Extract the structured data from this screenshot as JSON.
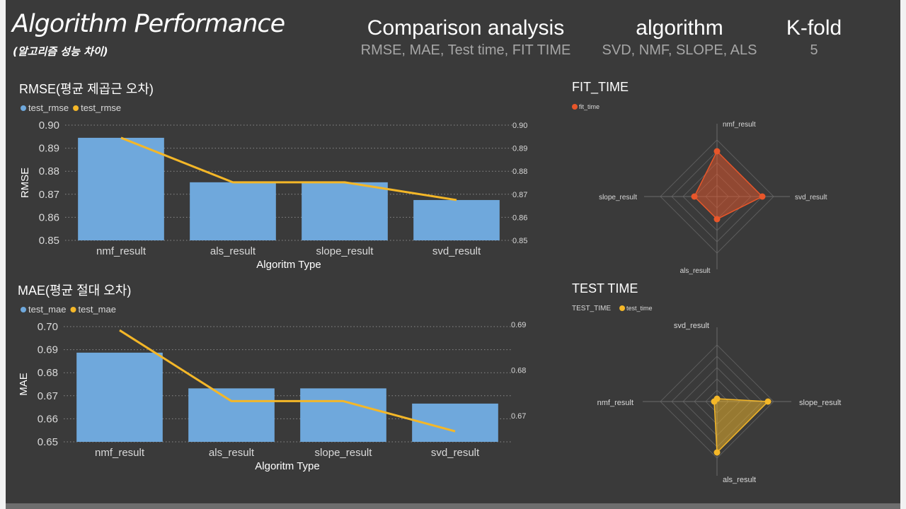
{
  "header": {
    "title": "Algorithm Performance",
    "subtitle": "(알고리즘 성능 차이)",
    "cards": [
      {
        "label": "Comparison analysis",
        "value": "RMSE, MAE, Test time, FIT TIME"
      },
      {
        "label": "algorithm",
        "value": "SVD, NMF, SLOPE, ALS"
      },
      {
        "label": "K-fold",
        "value": "5"
      }
    ]
  },
  "colors": {
    "background": "#3a3a3a",
    "bar": "#6fa8dc",
    "line": "#f4b728",
    "fit_time": "#e8562a",
    "test_time": "#f4b728",
    "text": "#ffffff",
    "muted": "#d9d9d9"
  },
  "chart_data": [
    {
      "type": "bar",
      "title": "RMSE(평균 제곱근 오차)",
      "xlabel": "Algoritm Type",
      "ylabel": "RMSE",
      "categories": [
        "nmf_result",
        "als_result",
        "slope_result",
        "svd_result"
      ],
      "series": [
        {
          "name": "test_rmse",
          "type": "bar",
          "axis": "left",
          "values": [
            0.8945,
            0.8752,
            0.8752,
            0.8675
          ]
        },
        {
          "name": "test_rmse",
          "type": "line",
          "axis": "right",
          "values": [
            0.8945,
            0.8752,
            0.8752,
            0.8675
          ]
        }
      ],
      "ylim": [
        0.85,
        0.9
      ],
      "yticks": [
        "0.85",
        "0.86",
        "0.87",
        "0.88",
        "0.89",
        "0.90"
      ],
      "y2lim": [
        0.85,
        0.9
      ],
      "y2ticks": [
        "0.85",
        "0.86",
        "0.87",
        "0.88",
        "0.89",
        "0.90"
      ],
      "grid": true,
      "legend": "top-left"
    },
    {
      "type": "bar",
      "title": "MAE(평균 절대 오차)",
      "xlabel": "Algoritm Type",
      "ylabel": "MAE",
      "categories": [
        "nmf_result",
        "als_result",
        "slope_result",
        "svd_result"
      ],
      "series": [
        {
          "name": "test_mae",
          "type": "bar",
          "axis": "left",
          "values": [
            0.6887,
            0.6732,
            0.6732,
            0.6666
          ]
        },
        {
          "name": "test_mae",
          "type": "line",
          "axis": "right",
          "values": [
            0.6887,
            0.6732,
            0.6732,
            0.6666
          ]
        }
      ],
      "ylim": [
        0.65,
        0.7
      ],
      "yticks": [
        "0.65",
        "0.66",
        "0.67",
        "0.68",
        "0.69",
        "0.70"
      ],
      "y2lim": [
        0.6643,
        0.6895
      ],
      "y2ticks": [
        "0.67",
        "0.68",
        "0.69"
      ],
      "grid": true,
      "legend": "top-left"
    },
    {
      "type": "radar",
      "title": "FIT_TIME",
      "axes": [
        "nmf_result",
        "svd_result",
        "als_result",
        "slope_result"
      ],
      "series": [
        {
          "name": "fit_time",
          "values": [
            0.8,
            0.8,
            0.4,
            0.4
          ]
        }
      ],
      "legend": "top-left"
    },
    {
      "type": "radar",
      "title": "TEST TIME",
      "legend_title": "TEST_TIME",
      "axes": [
        "svd_result",
        "slope_result",
        "als_result",
        "nmf_result"
      ],
      "series": [
        {
          "name": "test_time",
          "values": [
            0.05,
            0.9,
            0.9,
            0.05
          ]
        }
      ],
      "legend": "top-left"
    }
  ]
}
